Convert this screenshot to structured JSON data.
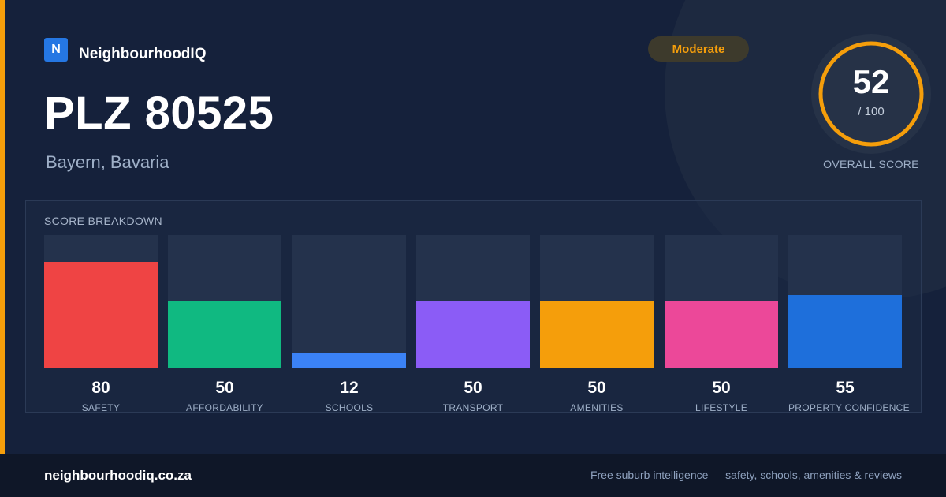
{
  "brand": {
    "logo_letter": "N",
    "name": "NeighbourhoodIQ"
  },
  "location": {
    "title": "PLZ 80525",
    "region": "Bayern, Bavaria"
  },
  "rating_badge": "Moderate",
  "overall": {
    "value": "52",
    "max_text": "/ 100",
    "fraction": 0.52,
    "label": "OVERALL SCORE"
  },
  "breakdown": {
    "title": "SCORE BREAKDOWN",
    "items": [
      {
        "label": "SAFETY",
        "value": "80",
        "color": "#ef4444"
      },
      {
        "label": "AFFORDABILITY",
        "value": "50",
        "color": "#10b981"
      },
      {
        "label": "SCHOOLS",
        "value": "12",
        "color": "#3b82f6"
      },
      {
        "label": "TRANSPORT",
        "value": "50",
        "color": "#8b5cf6"
      },
      {
        "label": "AMENITIES",
        "value": "50",
        "color": "#f59e0b"
      },
      {
        "label": "LIFESTYLE",
        "value": "50",
        "color": "#ec4899"
      },
      {
        "label": "PROPERTY CONFIDENCE",
        "value": "55",
        "color": "#1e6fdb"
      }
    ]
  },
  "colors": {
    "accent": "#f59e0b",
    "background": "#15213b",
    "track": "#24324c"
  },
  "footer": {
    "url": "neighbourhoodiq.co.za",
    "tagline": "Free suburb intelligence — safety, schools, amenities & reviews"
  }
}
